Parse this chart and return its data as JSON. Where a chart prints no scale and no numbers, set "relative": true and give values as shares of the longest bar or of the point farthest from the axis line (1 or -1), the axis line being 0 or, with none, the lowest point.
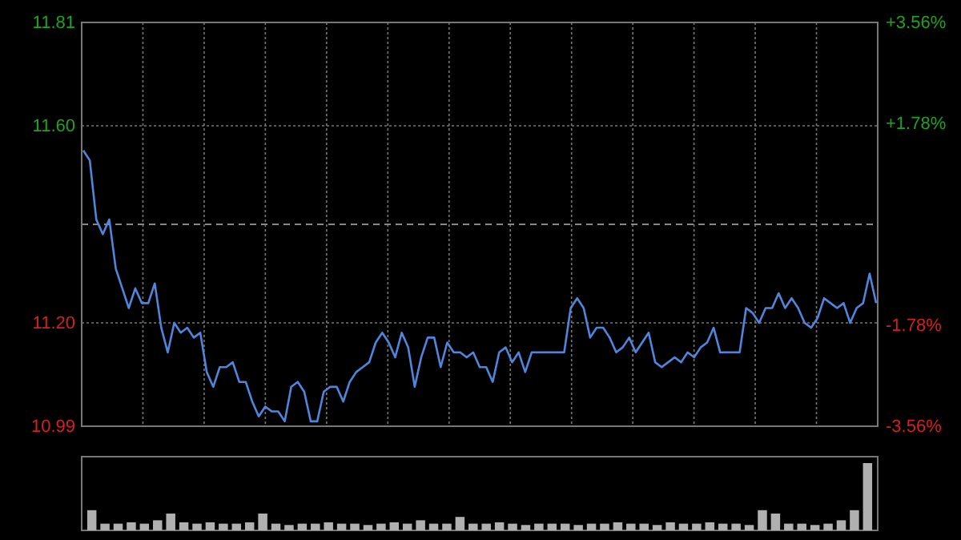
{
  "chart_data": [
    {
      "type": "line",
      "categories": [
        null,
        null,
        null,
        null,
        null,
        null,
        null,
        null,
        null,
        null,
        null,
        null,
        null,
        null,
        null,
        null,
        null,
        null,
        null,
        null,
        null,
        null,
        null,
        null,
        null,
        null,
        null,
        null,
        null,
        null,
        null,
        null,
        null,
        null,
        null,
        null,
        null,
        null,
        null,
        null,
        null,
        null,
        null,
        null,
        null,
        null,
        null,
        null,
        null,
        null,
        null,
        null,
        null,
        null,
        null,
        null,
        null,
        null,
        null,
        null,
        null,
        null,
        null,
        null,
        null,
        null,
        null,
        null,
        null,
        null,
        null,
        null,
        null,
        null,
        null,
        null,
        null,
        null,
        null,
        null,
        null,
        null,
        null,
        null,
        null,
        null,
        null,
        null,
        null,
        null,
        null,
        null,
        null,
        null,
        null,
        null,
        null,
        null,
        null,
        null,
        null,
        null,
        null,
        null,
        null,
        null,
        null,
        null,
        null,
        null,
        null,
        null,
        null,
        null,
        null,
        null,
        null,
        null,
        null,
        null,
        null,
        null,
        null
      ],
      "ylim": [
        10.99,
        11.81
      ],
      "yticks": [
        {
          "value": 10.99,
          "label": "10.99"
        },
        {
          "value": 11.2,
          "label": "11.20"
        },
        {
          "value": 11.6,
          "label": "11.60"
        },
        {
          "value": 11.81,
          "label": "11.81"
        }
      ],
      "y2lim": [
        -3.56,
        3.56
      ],
      "y2ticks": [
        {
          "value": -3.56,
          "label": "-3.56%"
        },
        {
          "value": -1.78,
          "label": "-1.78%"
        },
        {
          "value": 1.78,
          "label": "+1.78%"
        },
        {
          "value": 3.56,
          "label": "+3.56%"
        }
      ],
      "grid": true,
      "line_style": "solid",
      "ref_lines": [
        {
          "axis": "y",
          "value": 11.4,
          "line_style": "dashed"
        }
      ],
      "series": [
        {
          "color": "#4f86dc",
          "values": [
            11.55,
            11.53,
            11.41,
            11.38,
            11.41,
            11.31,
            11.27,
            11.23,
            11.27,
            11.24,
            11.24,
            11.28,
            11.19,
            11.14,
            11.2,
            11.18,
            11.19,
            11.17,
            11.18,
            11.1,
            11.07,
            11.11,
            11.11,
            11.12,
            11.08,
            11.08,
            11.04,
            11.01,
            11.03,
            11.02,
            11.02,
            11.0,
            11.07,
            11.08,
            11.06,
            11.0,
            11.0,
            11.06,
            11.07,
            11.07,
            11.04,
            11.08,
            11.1,
            11.11,
            11.12,
            11.16,
            11.18,
            11.16,
            11.13,
            11.18,
            11.15,
            11.07,
            11.13,
            11.17,
            11.17,
            11.11,
            11.16,
            11.14,
            11.14,
            11.13,
            11.14,
            11.11,
            11.11,
            11.08,
            11.14,
            11.15,
            11.12,
            11.14,
            11.1,
            11.14,
            11.14,
            11.14,
            11.14,
            11.14,
            11.14,
            11.23,
            11.25,
            11.23,
            11.17,
            11.19,
            11.19,
            11.17,
            11.14,
            11.15,
            11.17,
            11.14,
            11.16,
            11.18,
            11.12,
            11.11,
            11.12,
            11.13,
            11.12,
            11.14,
            11.13,
            11.15,
            11.16,
            11.19,
            11.14,
            11.14,
            11.14,
            11.14,
            11.23,
            11.22,
            11.2,
            11.23,
            11.23,
            11.26,
            11.23,
            11.25,
            11.23,
            11.2,
            11.19,
            11.21,
            11.25,
            11.24,
            11.23,
            11.24,
            11.2,
            11.23,
            11.24,
            11.3,
            11.24
          ]
        }
      ]
    },
    {
      "type": "bar",
      "relative": true,
      "color": "#b0b0b0",
      "categories": [
        null,
        null,
        null,
        null,
        null,
        null,
        null,
        null,
        null,
        null,
        null,
        null,
        null,
        null,
        null,
        null,
        null,
        null,
        null,
        null,
        null,
        null,
        null,
        null,
        null,
        null,
        null,
        null,
        null,
        null,
        null,
        null,
        null,
        null,
        null,
        null,
        null,
        null,
        null,
        null,
        null,
        null,
        null,
        null,
        null,
        null,
        null,
        null,
        null,
        null,
        null,
        null,
        null,
        null,
        null,
        null,
        null,
        null,
        null,
        null
      ],
      "values": [
        0.3,
        0.1,
        0.1,
        0.12,
        0.1,
        0.15,
        0.25,
        0.12,
        0.1,
        0.12,
        0.1,
        0.1,
        0.12,
        0.25,
        0.1,
        0.08,
        0.1,
        0.1,
        0.12,
        0.1,
        0.1,
        0.08,
        0.1,
        0.12,
        0.1,
        0.15,
        0.1,
        0.1,
        0.2,
        0.1,
        0.1,
        0.12,
        0.1,
        0.08,
        0.1,
        0.1,
        0.1,
        0.08,
        0.1,
        0.1,
        0.12,
        0.1,
        0.1,
        0.08,
        0.12,
        0.1,
        0.1,
        0.12,
        0.1,
        0.1,
        0.08,
        0.3,
        0.25,
        0.1,
        0.1,
        0.08,
        0.1,
        0.15,
        0.3,
        1
      ]
    }
  ]
}
